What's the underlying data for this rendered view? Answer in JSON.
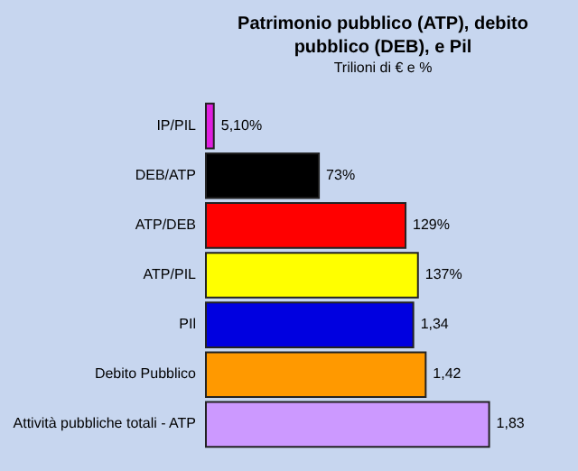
{
  "chart_data": {
    "type": "bar",
    "orientation": "horizontal",
    "title": "Patrimonio pubblico (ATP), debito pubblico (DEB), e Pil",
    "subtitle": "Trilioni di € e %",
    "categories": [
      "IP/PIL",
      "DEB/ATP",
      "ATP/DEB",
      "ATP/PIL",
      "PIl",
      "Debito Pubblico",
      "Attività pubbliche totali - ATP"
    ],
    "values": [
      0.051,
      0.73,
      1.29,
      1.37,
      1.34,
      1.42,
      1.83
    ],
    "colors": [
      "#e020e0",
      "#000000",
      "#ff0000",
      "#ffff00",
      "#0000e0",
      "#ff9900",
      "#cc99ff"
    ],
    "value_labels": [
      "5,10%",
      "73%",
      "129%",
      "137%",
      "1,34",
      "1,42",
      "1,83"
    ]
  }
}
